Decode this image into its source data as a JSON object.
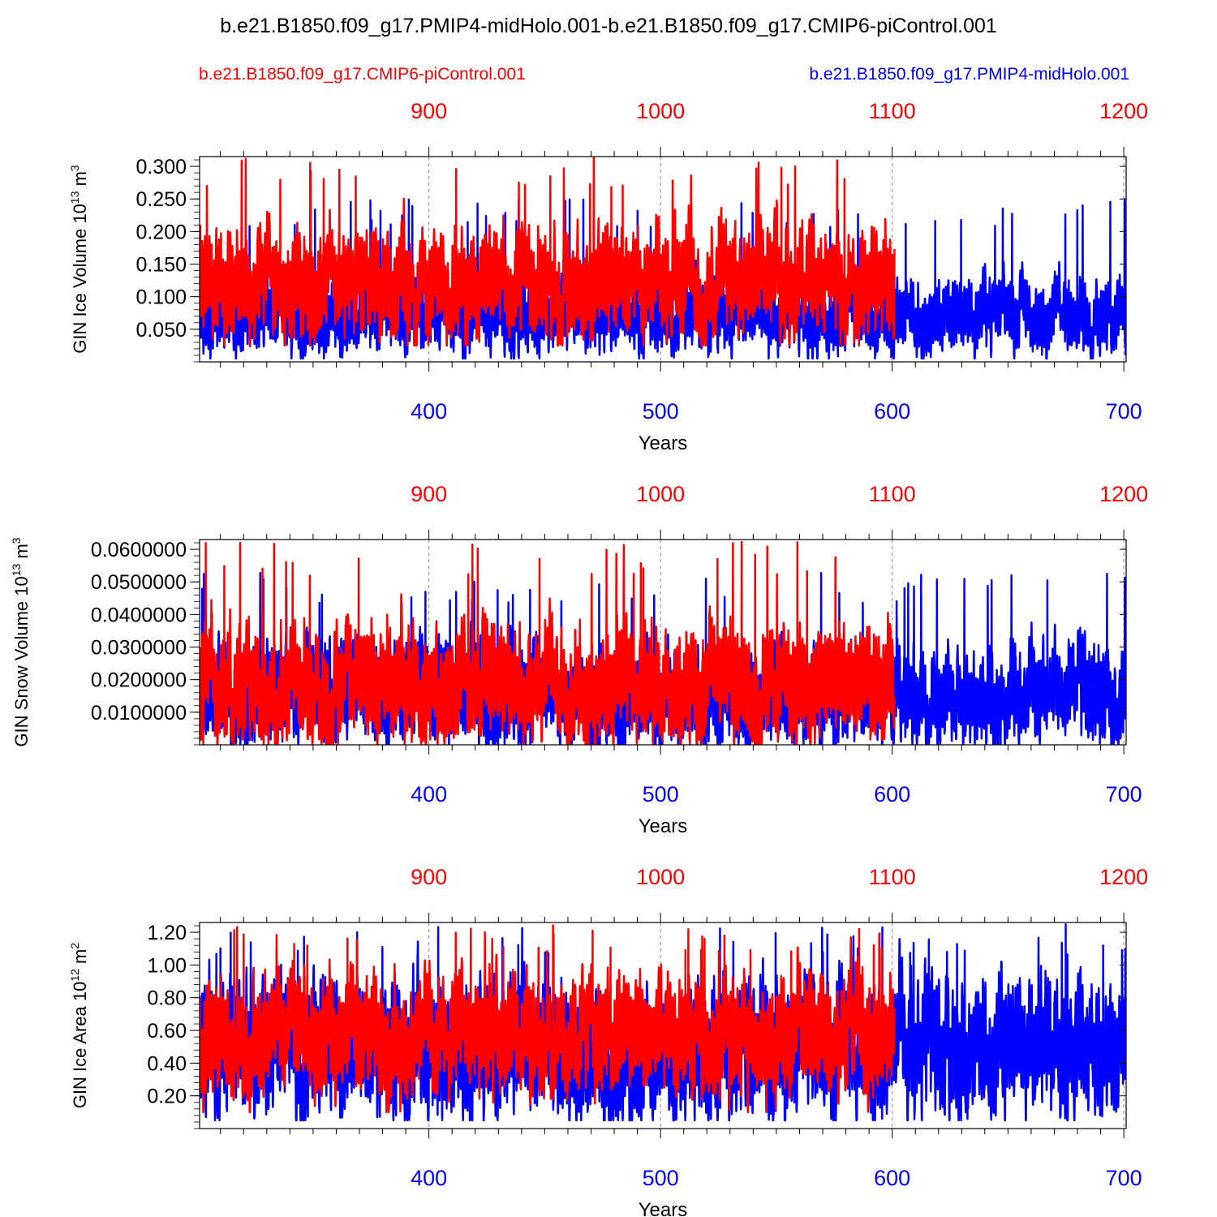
{
  "figure": {
    "title": "b.e21.B1850.f09_g17.PMIP4-midHolo.001-b.e21.B1850.f09_g17.CMIP6-piControl.001",
    "legend": {
      "control_run": "b.e21.B1850.f09_g17.CMIP6-piControl.001",
      "experiment_run": "b.e21.B1850.f09_g17.PMIP4-midHolo.001"
    },
    "colors": {
      "control": "#ff0000",
      "experiment": "#0000ff",
      "axis": "#000000",
      "grid": "#888888"
    }
  },
  "chart_data": [
    {
      "type": "line",
      "ylabel": "GIN Ice Volume 10^13 m^3",
      "ylabel_base": "GIN Ice Volume 10",
      "ylabel_exp": "13",
      "ylabel_unit": "m",
      "ylabel_unit_exp": "3",
      "xlabel": "Years",
      "ylim": [
        0.0,
        0.315
      ],
      "yticks": [
        0.05,
        0.1,
        0.15,
        0.2,
        0.25,
        0.3
      ],
      "ytick_labels": [
        "0.050",
        "0.100",
        "0.150",
        "0.200",
        "0.250",
        "0.300"
      ],
      "bottom_axis": {
        "range": [
          301,
          701
        ],
        "ticks": [
          400,
          500,
          600,
          700
        ],
        "labels": [
          "400",
          "500",
          "600",
          "700"
        ],
        "color": "#0000ff"
      },
      "top_axis": {
        "ticks": [
          900,
          1000,
          1100,
          1200
        ],
        "labels": [
          "900",
          "1000",
          "1100",
          "1200"
        ],
        "color": "#ff0000",
        "offset_years": 500
      },
      "series": [
        {
          "name": "b.e21.B1850.f09_g17.PMIP4-midHolo.001",
          "color": "#0000ff",
          "x_range": [
            301,
            701
          ],
          "mean": 0.07,
          "amplitude": 0.045,
          "spike_max": 0.25,
          "min": 0.005
        },
        {
          "name": "b.e21.B1850.f09_g17.CMIP6-piControl.001",
          "color": "#ff0000",
          "x_range": [
            801,
            1101
          ],
          "mean": 0.125,
          "amplitude": 0.065,
          "spike_max": 0.315,
          "min": 0.025
        }
      ]
    },
    {
      "type": "line",
      "ylabel": "GIN Snow Volume 10^13 m^3",
      "ylabel_base": "GIN Snow Volume 10",
      "ylabel_exp": "13",
      "ylabel_unit": "m",
      "ylabel_unit_exp": "3",
      "xlabel": "Years",
      "ylim": [
        0.0,
        0.063
      ],
      "yticks": [
        0.01,
        0.02,
        0.03,
        0.04,
        0.05,
        0.06
      ],
      "ytick_labels": [
        "0.0100000",
        "0.0200000",
        "0.0300000",
        "0.0400000",
        "0.0500000",
        "0.0600000"
      ],
      "bottom_axis": {
        "range": [
          301,
          701
        ],
        "ticks": [
          400,
          500,
          600,
          700
        ],
        "labels": [
          "400",
          "500",
          "600",
          "700"
        ],
        "color": "#0000ff"
      },
      "top_axis": {
        "ticks": [
          900,
          1000,
          1100,
          1200
        ],
        "labels": [
          "900",
          "1000",
          "1100",
          "1200"
        ],
        "color": "#ff0000",
        "offset_years": 500
      },
      "series": [
        {
          "name": "b.e21.B1850.f09_g17.PMIP4-midHolo.001",
          "color": "#0000ff",
          "x_range": [
            301,
            701
          ],
          "mean": 0.015,
          "amplitude": 0.012,
          "spike_max": 0.053,
          "min": 0.0
        },
        {
          "name": "b.e21.B1850.f09_g17.CMIP6-piControl.001",
          "color": "#ff0000",
          "x_range": [
            801,
            1101
          ],
          "mean": 0.018,
          "amplitude": 0.014,
          "spike_max": 0.063,
          "min": 0.0
        }
      ]
    },
    {
      "type": "line",
      "ylabel": "GIN Ice Area 10^12 m^2",
      "ylabel_base": "GIN Ice Area 10",
      "ylabel_exp": "12",
      "ylabel_unit": "m",
      "ylabel_unit_exp": "2",
      "xlabel": "Years",
      "ylim": [
        0.0,
        1.26
      ],
      "yticks": [
        0.2,
        0.4,
        0.6,
        0.8,
        1.0,
        1.2
      ],
      "ytick_labels": [
        "0.20",
        "0.40",
        "0.60",
        "0.80",
        "1.00",
        "1.20"
      ],
      "bottom_axis": {
        "range": [
          301,
          701
        ],
        "ticks": [
          400,
          500,
          600,
          700
        ],
        "labels": [
          "400",
          "500",
          "600",
          "700"
        ],
        "color": "#0000ff"
      },
      "top_axis": {
        "ticks": [
          900,
          1000,
          1100,
          1200
        ],
        "labels": [
          "900",
          "1000",
          "1100",
          "1200"
        ],
        "color": "#ff0000",
        "offset_years": 500
      },
      "series": [
        {
          "name": "b.e21.B1850.f09_g17.PMIP4-midHolo.001",
          "color": "#0000ff",
          "x_range": [
            301,
            701
          ],
          "mean": 0.5,
          "amplitude": 0.33,
          "spike_max": 1.25,
          "min": 0.05
        },
        {
          "name": "b.e21.B1850.f09_g17.CMIP6-piControl.001",
          "color": "#ff0000",
          "x_range": [
            801,
            1101
          ],
          "mean": 0.58,
          "amplitude": 0.28,
          "spike_max": 1.25,
          "min": 0.1
        }
      ]
    }
  ]
}
